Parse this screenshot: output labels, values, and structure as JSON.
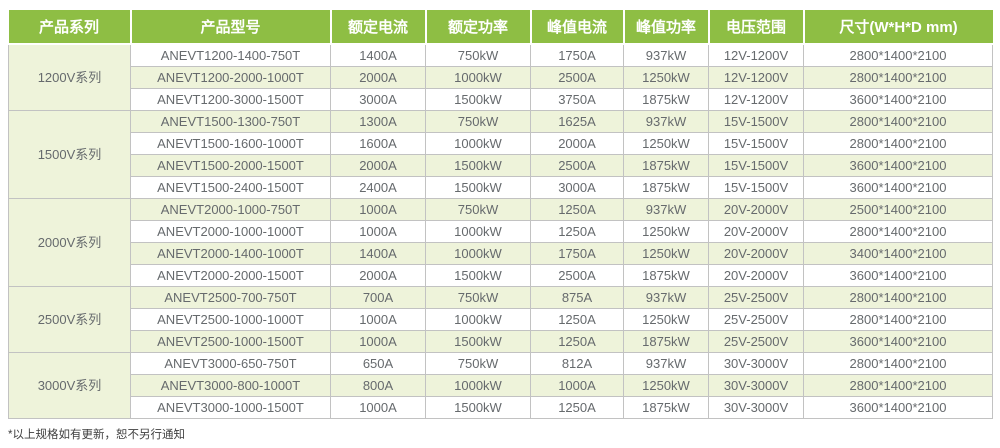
{
  "table": {
    "columns": [
      "产品系列",
      "产品型号",
      "额定电流",
      "额定功率",
      "峰值电流",
      "峰值功率",
      "电压范围",
      "尺寸(W*H*D mm)"
    ],
    "groups": [
      {
        "series": "1200V系列",
        "rows": [
          [
            "ANEVT1200-1400-750T",
            "1400A",
            "750kW",
            "1750A",
            "937kW",
            "12V-1200V",
            "2800*1400*2100"
          ],
          [
            "ANEVT1200-2000-1000T",
            "2000A",
            "1000kW",
            "2500A",
            "1250kW",
            "12V-1200V",
            "2800*1400*2100"
          ],
          [
            "ANEVT1200-3000-1500T",
            "3000A",
            "1500kW",
            "3750A",
            "1875kW",
            "12V-1200V",
            "3600*1400*2100"
          ]
        ]
      },
      {
        "series": "1500V系列",
        "rows": [
          [
            "ANEVT1500-1300-750T",
            "1300A",
            "750kW",
            "1625A",
            "937kW",
            "15V-1500V",
            "2800*1400*2100"
          ],
          [
            "ANEVT1500-1600-1000T",
            "1600A",
            "1000kW",
            "2000A",
            "1250kW",
            "15V-1500V",
            "2800*1400*2100"
          ],
          [
            "ANEVT1500-2000-1500T",
            "2000A",
            "1500kW",
            "2500A",
            "1875kW",
            "15V-1500V",
            "3600*1400*2100"
          ],
          [
            "ANEVT1500-2400-1500T",
            "2400A",
            "1500kW",
            "3000A",
            "1875kW",
            "15V-1500V",
            "3600*1400*2100"
          ]
        ]
      },
      {
        "series": "2000V系列",
        "rows": [
          [
            "ANEVT2000-1000-750T",
            "1000A",
            "750kW",
            "1250A",
            "937kW",
            "20V-2000V",
            "2500*1400*2100"
          ],
          [
            "ANEVT2000-1000-1000T",
            "1000A",
            "1000kW",
            "1250A",
            "1250kW",
            "20V-2000V",
            "2800*1400*2100"
          ],
          [
            "ANEVT2000-1400-1000T",
            "1400A",
            "1000kW",
            "1750A",
            "1250kW",
            "20V-2000V",
            "3400*1400*2100"
          ],
          [
            "ANEVT2000-2000-1500T",
            "2000A",
            "1500kW",
            "2500A",
            "1875kW",
            "20V-2000V",
            "3600*1400*2100"
          ]
        ]
      },
      {
        "series": "2500V系列",
        "rows": [
          [
            "ANEVT2500-700-750T",
            "700A",
            "750kW",
            "875A",
            "937kW",
            "25V-2500V",
            "2800*1400*2100"
          ],
          [
            "ANEVT2500-1000-1000T",
            "1000A",
            "1000kW",
            "1250A",
            "1250kW",
            "25V-2500V",
            "2800*1400*2100"
          ],
          [
            "ANEVT2500-1000-1500T",
            "1000A",
            "1500kW",
            "1250A",
            "1875kW",
            "25V-2500V",
            "3600*1400*2100"
          ]
        ]
      },
      {
        "series": "3000V系列",
        "rows": [
          [
            "ANEVT3000-650-750T",
            "650A",
            "750kW",
            "812A",
            "937kW",
            "30V-3000V",
            "2800*1400*2100"
          ],
          [
            "ANEVT3000-800-1000T",
            "800A",
            "1000kW",
            "1000A",
            "1250kW",
            "30V-3000V",
            "2800*1400*2100"
          ],
          [
            "ANEVT3000-1000-1500T",
            "1000A",
            "1500kW",
            "1250A",
            "1875kW",
            "30V-3000V",
            "3600*1400*2100"
          ]
        ]
      }
    ]
  },
  "footnote": "*以上规格如有更新，恕不另行通知",
  "colors": {
    "header_bg": "#8ebe44",
    "header_text": "#ffffff",
    "row_bg": "#ffffff",
    "row_alt_bg": "#eef3da",
    "series_cell_bg": "#eef3da",
    "border": "#c2c2c2",
    "body_text": "#666a6d"
  }
}
